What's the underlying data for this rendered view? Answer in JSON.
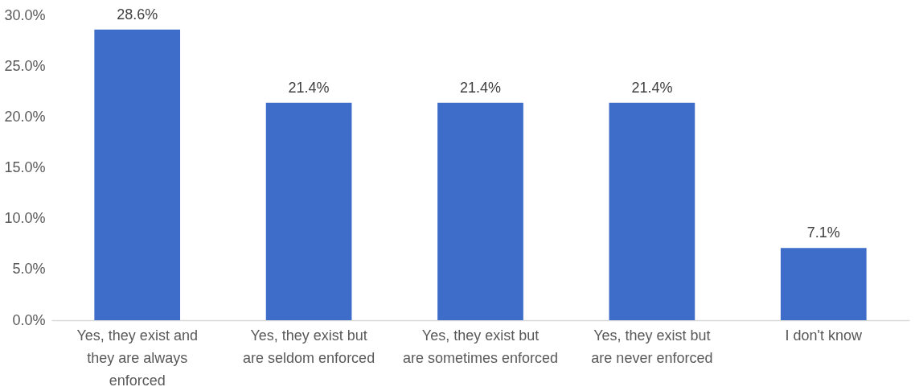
{
  "chart_data": {
    "type": "bar",
    "categories": [
      "Yes, they exist and they are always enforced",
      "Yes, they exist but are seldom enforced",
      "Yes, they exist but are sometimes enforced",
      "Yes, they exist but are never enforced",
      "I don't know"
    ],
    "values": [
      28.6,
      21.4,
      21.4,
      21.4,
      7.1
    ],
    "value_labels": [
      "28.6%",
      "21.4%",
      "21.4%",
      "21.4%",
      "7.1%"
    ],
    "color": "#3d6cc9",
    "ylim": [
      0,
      30
    ],
    "yticks": [
      {
        "value": 0,
        "label": "0.0%"
      },
      {
        "value": 5,
        "label": "5.0%"
      },
      {
        "value": 10,
        "label": "10.0%"
      },
      {
        "value": 15,
        "label": "15.0%"
      },
      {
        "value": 20,
        "label": "20.0%"
      },
      {
        "value": 25,
        "label": "25.0%"
      },
      {
        "value": 30,
        "label": "30.0%"
      }
    ],
    "grid": false
  }
}
